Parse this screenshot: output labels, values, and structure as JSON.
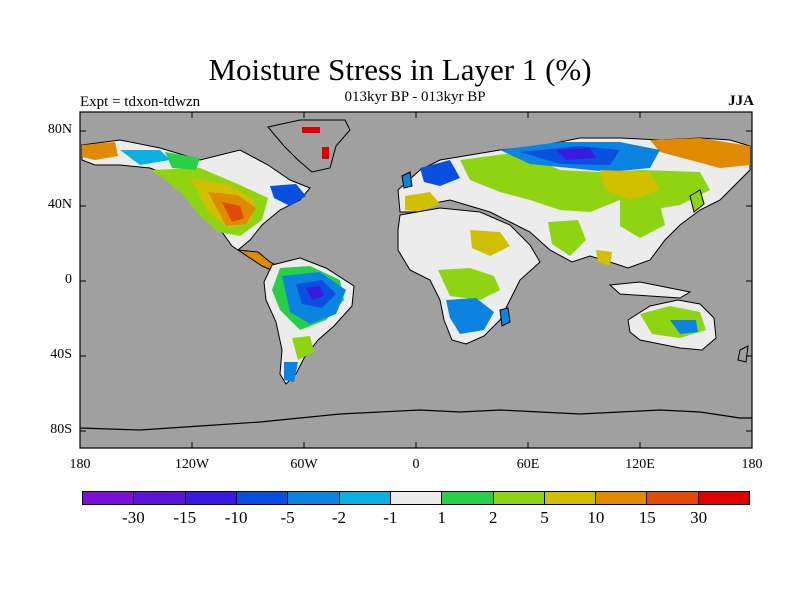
{
  "map": {
    "title": "Moisture Stress in Layer 1 (%)",
    "subtitle": "013kyr BP - 013kyr BP",
    "expt_label": "Expt = tdxon-tdwzn",
    "season": "JJA",
    "lat_ticks": [
      "80N",
      "40N",
      "0",
      "40S",
      "80S"
    ],
    "lon_ticks": [
      "180",
      "120W",
      "60W",
      "0",
      "60E",
      "120E",
      "180"
    ],
    "ocean_color": "#a0a0a0",
    "colorbar": {
      "colors": [
        "#7a10d8",
        "#5a14d8",
        "#3a1ae0",
        "#0a50e0",
        "#0a84e0",
        "#0ab0e0",
        "#ececec",
        "#28d048",
        "#8ed410",
        "#d0c000",
        "#e08a00",
        "#e04a0a",
        "#e00000"
      ],
      "labels": [
        "-30",
        "-15",
        "-10",
        "-5",
        "-2",
        "-1",
        "1",
        "2",
        "5",
        "10",
        "15",
        "30"
      ]
    }
  }
}
